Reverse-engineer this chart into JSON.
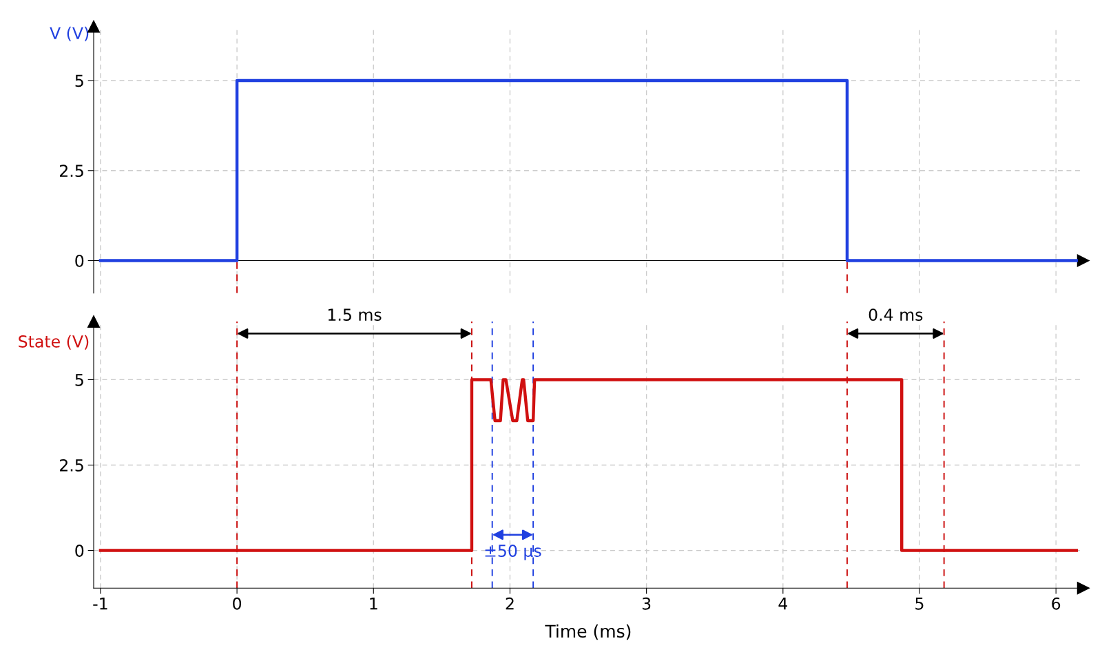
{
  "chart_data": [
    {
      "type": "line",
      "ylabel": "V (V)",
      "xlim": [
        -1.05,
        6.2
      ],
      "xticks": [
        -1,
        0,
        1,
        2,
        3,
        4,
        5,
        6
      ],
      "ylim": [
        -0.9,
        6.5
      ],
      "yticks": [
        0,
        2.5,
        5
      ],
      "grid": true,
      "tick_labels": "y",
      "series": [
        {
          "color": "#2040e0",
          "x": [
            -1,
            0,
            0,
            4.47,
            4.47,
            6.15
          ],
          "values": [
            0,
            0,
            5,
            5,
            0,
            0
          ]
        }
      ],
      "ref_lines": [
        {
          "axis": "x",
          "value": 0,
          "color": "#cc1111",
          "line_style": "dashed"
        },
        {
          "axis": "x",
          "value": 4.47,
          "color": "#cc1111",
          "line_style": "dashed"
        }
      ]
    },
    {
      "type": "line",
      "ylabel": "State (V)",
      "xlabel": "Time (ms)",
      "xlim": [
        -1.05,
        6.2
      ],
      "xticks": [
        -1,
        0,
        1,
        2,
        3,
        4,
        5,
        6
      ],
      "ylim": [
        -1.1,
        6.7
      ],
      "yticks": [
        0,
        2.5,
        5
      ],
      "grid": true,
      "series": [
        {
          "color": "#d01010",
          "x": [
            -1,
            1.72,
            1.72,
            1.86,
            1.89,
            1.93,
            1.95,
            1.97,
            2.02,
            2.05,
            2.09,
            2.1,
            2.13,
            2.17,
            2.18,
            4.87,
            4.87,
            6.15
          ],
          "values": [
            0,
            0,
            5,
            5,
            3.8,
            3.8,
            5,
            5,
            3.8,
            3.8,
            5,
            5,
            3.8,
            3.8,
            5,
            5,
            0,
            0
          ]
        }
      ],
      "ref_lines": [
        {
          "axis": "x",
          "value": 0,
          "color": "#cc1111",
          "line_style": "dashed"
        },
        {
          "axis": "x",
          "value": 1.72,
          "color": "#cc1111",
          "line_style": "dashed"
        },
        {
          "axis": "x",
          "value": 1.87,
          "color": "#2040e0",
          "line_style": "dashed"
        },
        {
          "axis": "x",
          "value": 2.17,
          "color": "#2040e0",
          "line_style": "dashed"
        },
        {
          "axis": "x",
          "value": 4.47,
          "color": "#cc1111",
          "line_style": "dashed"
        },
        {
          "axis": "x",
          "value": 5.18,
          "color": "#cc1111",
          "line_style": "dashed"
        }
      ],
      "annotations": [
        "1.5 ms",
        "±50 µs",
        "0.4 ms"
      ]
    }
  ]
}
